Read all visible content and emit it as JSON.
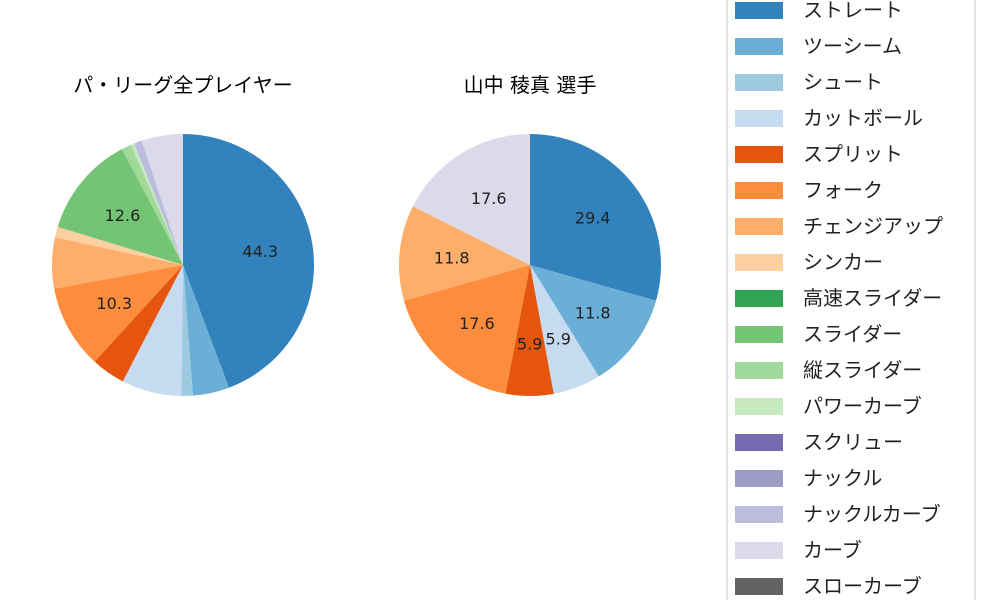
{
  "chart_data": [
    {
      "type": "pie",
      "title": "パ・リーグ全プレイヤー",
      "categories": [
        "ストレート",
        "ツーシーム",
        "シュート",
        "カットボール",
        "スプリット",
        "フォーク",
        "チェンジアップ",
        "シンカー",
        "高速スライダー",
        "スライダー",
        "縦スライダー",
        "パワーカーブ",
        "スクリュー",
        "ナックル",
        "ナックルカーブ",
        "カーブ",
        "スローカーブ"
      ],
      "values": [
        44.3,
        4.5,
        1.4,
        7.4,
        4.2,
        10.3,
        6.3,
        1.3,
        0,
        12.6,
        1.2,
        0.4,
        0,
        0,
        1.0,
        5.1,
        0
      ],
      "labels_shown": [
        "44.3",
        "",
        "",
        "",
        "",
        "10.3",
        "",
        "",
        "",
        "12.6",
        "",
        "",
        "",
        "",
        "",
        "",
        ""
      ],
      "start": "top",
      "direction": "clockwise"
    },
    {
      "type": "pie",
      "title": "山中 稜真  選手",
      "categories": [
        "ストレート",
        "ツーシーム",
        "シュート",
        "カットボール",
        "スプリット",
        "フォーク",
        "チェンジアップ",
        "シンカー",
        "高速スライダー",
        "スライダー",
        "縦スライダー",
        "パワーカーブ",
        "スクリュー",
        "ナックル",
        "ナックルカーブ",
        "カーブ",
        "スローカーブ"
      ],
      "values": [
        29.4,
        11.8,
        0,
        5.9,
        5.9,
        17.6,
        11.8,
        0,
        0,
        0,
        0,
        0,
        0,
        0,
        0,
        17.6,
        0
      ],
      "labels_shown": [
        "29.4",
        "11.8",
        "",
        "5.9",
        "5.9",
        "17.6",
        "11.8",
        "",
        "",
        "",
        "",
        "",
        "",
        "",
        "",
        "17.6",
        ""
      ],
      "start": "top",
      "direction": "clockwise"
    }
  ],
  "legend": {
    "placement": "right",
    "items": [
      "ストレート",
      "ツーシーム",
      "シュート",
      "カットボール",
      "スプリット",
      "フォーク",
      "チェンジアップ",
      "シンカー",
      "高速スライダー",
      "スライダー",
      "縦スライダー",
      "パワーカーブ",
      "スクリュー",
      "ナックル",
      "ナックルカーブ",
      "カーブ",
      "スローカーブ"
    ]
  },
  "colors": [
    "#3182bd",
    "#6baed6",
    "#9ecae1",
    "#c6dbef",
    "#e6550d",
    "#fd8d3c",
    "#fdae6b",
    "#fdd0a2",
    "#31a354",
    "#74c476",
    "#a1d99b",
    "#c7e9c0",
    "#756bb1",
    "#9e9ac8",
    "#bcbddc",
    "#dadaeb",
    "#636363"
  ]
}
